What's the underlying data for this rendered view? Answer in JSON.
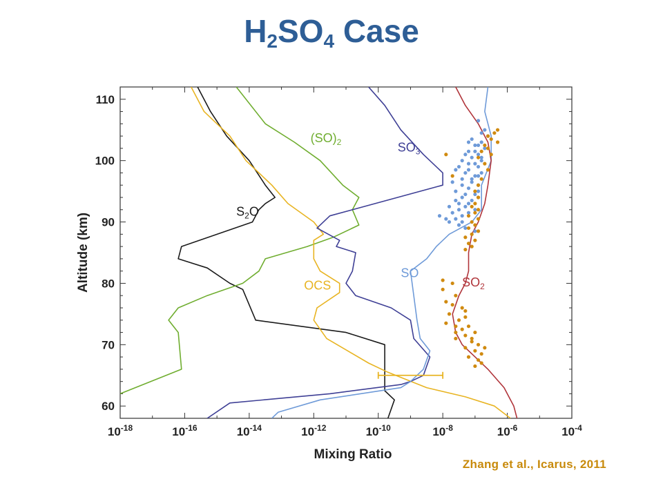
{
  "slide": {
    "title_main": "H",
    "title_sub1": "2",
    "title_mid": "SO",
    "title_sub2": "4",
    "title_tail": " Case",
    "citation": "Zhang et al., Icarus, 2011",
    "title_color": "#2e5e96",
    "citation_color": "#c88a0b"
  },
  "chart_data": {
    "type": "line",
    "xlabel": "Mixing Ratio",
    "ylabel": "Altitude (km)",
    "xscale": "log",
    "xlim_exp": [
      -18,
      -4
    ],
    "ylim": [
      58,
      112
    ],
    "x_ticks": [
      {
        "base": "10",
        "exp": "-18"
      },
      {
        "base": "10",
        "exp": "-16"
      },
      {
        "base": "10",
        "exp": "-14"
      },
      {
        "base": "10",
        "exp": "-12"
      },
      {
        "base": "10",
        "exp": "-10"
      },
      {
        "base": "10",
        "exp": "-8"
      },
      {
        "base": "10",
        "exp": "-6"
      },
      {
        "base": "10",
        "exp": "-4"
      }
    ],
    "y_ticks": [
      "60",
      "70",
      "80",
      "90",
      "100",
      "110"
    ],
    "series": [
      {
        "name": "S2O",
        "label_base": "S",
        "label_sub": "2",
        "label_rest": "O",
        "label_at": {
          "x": -14.4,
          "y": 91.0
        },
        "color": "#1a1a1a",
        "points": [
          [
            -9.7,
            58
          ],
          [
            -9.5,
            61
          ],
          [
            -9.8,
            62.5
          ],
          [
            -9.8,
            70
          ],
          [
            -11.0,
            72
          ],
          [
            -13.8,
            74
          ],
          [
            -14.2,
            79
          ],
          [
            -14.6,
            80
          ],
          [
            -15.3,
            82.5
          ],
          [
            -16.2,
            84
          ],
          [
            -16.1,
            86
          ],
          [
            -13.9,
            90
          ],
          [
            -13.7,
            92
          ],
          [
            -13.5,
            93
          ],
          [
            -13.2,
            94
          ],
          [
            -13.5,
            96
          ],
          [
            -14.0,
            100
          ],
          [
            -14.7,
            104
          ],
          [
            -15.2,
            108
          ],
          [
            -15.6,
            112
          ]
        ]
      },
      {
        "name": "(SO)2",
        "label_base": "(SO)",
        "label_sub": "2",
        "label_rest": "",
        "label_at": {
          "x": -12.1,
          "y": 103.0
        },
        "color": "#6fad2f",
        "points": [
          [
            -18.0,
            62
          ],
          [
            -16.1,
            66
          ],
          [
            -16.2,
            72
          ],
          [
            -16.5,
            74
          ],
          [
            -16.2,
            76
          ],
          [
            -15.3,
            78
          ],
          [
            -14.2,
            80
          ],
          [
            -13.7,
            82
          ],
          [
            -13.5,
            84
          ],
          [
            -12.2,
            86
          ],
          [
            -11.4,
            87.5
          ],
          [
            -10.6,
            89.5
          ],
          [
            -10.8,
            92
          ],
          [
            -10.6,
            94
          ],
          [
            -11.1,
            96
          ],
          [
            -11.8,
            100
          ],
          [
            -12.6,
            103
          ],
          [
            -13.5,
            106
          ],
          [
            -14.4,
            112
          ]
        ]
      },
      {
        "name": "OCS",
        "label_base": "OCS",
        "label_sub": "",
        "label_rest": "",
        "label_at": {
          "x": -12.3,
          "y": 79.0
        },
        "color": "#e8b422",
        "points": [
          [
            -5.9,
            58
          ],
          [
            -6.4,
            60
          ],
          [
            -7.3,
            61.5
          ],
          [
            -8.5,
            63
          ],
          [
            -9.7,
            65.5
          ],
          [
            -10.3,
            67
          ],
          [
            -11.6,
            71
          ],
          [
            -12.0,
            74
          ],
          [
            -11.9,
            76
          ],
          [
            -11.2,
            78.5
          ],
          [
            -11.2,
            80
          ],
          [
            -11.8,
            82
          ],
          [
            -12.0,
            84
          ],
          [
            -12.0,
            87
          ],
          [
            -11.7,
            88
          ],
          [
            -12.0,
            90
          ],
          [
            -12.8,
            93
          ],
          [
            -13.3,
            96
          ],
          [
            -14.1,
            100
          ],
          [
            -14.6,
            104
          ],
          [
            -15.4,
            108
          ],
          [
            -15.8,
            112
          ]
        ]
      },
      {
        "name": "SO3",
        "label_base": "SO",
        "label_sub": "3",
        "label_rest": "",
        "label_at": {
          "x": -9.4,
          "y": 101.5
        },
        "color": "#3e3f95",
        "points": [
          [
            -15.3,
            58
          ],
          [
            -14.6,
            60.5
          ],
          [
            -11.5,
            62
          ],
          [
            -9.3,
            63.5
          ],
          [
            -9.0,
            64
          ],
          [
            -8.6,
            65
          ],
          [
            -8.4,
            68
          ],
          [
            -8.9,
            71
          ],
          [
            -9.0,
            74
          ],
          [
            -9.6,
            76
          ],
          [
            -10.7,
            78
          ],
          [
            -11.0,
            80
          ],
          [
            -10.8,
            82
          ],
          [
            -10.7,
            85
          ],
          [
            -11.3,
            86
          ],
          [
            -11.2,
            87
          ],
          [
            -11.9,
            89
          ],
          [
            -11.5,
            91
          ],
          [
            -8.0,
            96
          ],
          [
            -8.0,
            98
          ],
          [
            -8.6,
            101
          ],
          [
            -9.3,
            105
          ],
          [
            -9.8,
            109
          ],
          [
            -10.3,
            112
          ]
        ]
      },
      {
        "name": "SO",
        "label_base": "SO",
        "label_sub": "",
        "label_rest": "",
        "label_at": {
          "x": -9.3,
          "y": 81.0
        },
        "color": "#6e9ad8",
        "points": [
          [
            -13.3,
            58
          ],
          [
            -13.1,
            59
          ],
          [
            -11.8,
            61
          ],
          [
            -9.3,
            63
          ],
          [
            -9.0,
            64
          ],
          [
            -8.6,
            66
          ],
          [
            -8.4,
            69
          ],
          [
            -8.7,
            71
          ],
          [
            -8.8,
            74
          ],
          [
            -8.9,
            78
          ],
          [
            -9.0,
            82
          ],
          [
            -8.5,
            84
          ],
          [
            -8.2,
            86
          ],
          [
            -7.8,
            88
          ],
          [
            -7.1,
            90
          ],
          [
            -6.8,
            92
          ],
          [
            -6.8,
            96
          ],
          [
            -6.5,
            100
          ],
          [
            -6.5,
            104
          ],
          [
            -6.7,
            108
          ],
          [
            -6.6,
            112
          ]
        ]
      },
      {
        "name": "SO2",
        "label_base": "SO",
        "label_sub": "2",
        "label_rest": "",
        "label_at": {
          "x": -7.4,
          "y": 79.5
        },
        "color": "#b0343a",
        "points": [
          [
            -5.7,
            58
          ],
          [
            -5.8,
            60
          ],
          [
            -6.1,
            63
          ],
          [
            -6.6,
            66
          ],
          [
            -7.0,
            68
          ],
          [
            -7.4,
            70
          ],
          [
            -7.6,
            72
          ],
          [
            -7.7,
            75
          ],
          [
            -7.5,
            78
          ],
          [
            -7.3,
            80
          ],
          [
            -7.2,
            82
          ],
          [
            -7.2,
            85
          ],
          [
            -7.1,
            88
          ],
          [
            -6.9,
            90
          ],
          [
            -6.7,
            93
          ],
          [
            -6.6,
            96
          ],
          [
            -6.5,
            100
          ],
          [
            -6.6,
            103
          ],
          [
            -6.9,
            106
          ],
          [
            -7.3,
            109
          ],
          [
            -7.6,
            112
          ]
        ]
      }
    ],
    "error_bar": {
      "x_min": -10.0,
      "x_max": -8.0,
      "y": 65,
      "color": "#e8b422"
    },
    "observations": [
      {
        "name": "SO observations",
        "color": "#6e9ad8",
        "points": [
          [
            -7.8,
            90
          ],
          [
            -7.6,
            90.5
          ],
          [
            -7.4,
            91
          ],
          [
            -7.2,
            91.5
          ],
          [
            -7.0,
            92
          ],
          [
            -7.3,
            92.5
          ],
          [
            -7.5,
            93
          ],
          [
            -7.1,
            93.5
          ],
          [
            -6.9,
            94
          ],
          [
            -7.3,
            94.5
          ],
          [
            -7.6,
            95
          ],
          [
            -7.2,
            95.5
          ],
          [
            -6.9,
            96
          ],
          [
            -7.1,
            96.5
          ],
          [
            -7.4,
            97
          ],
          [
            -7.0,
            97.5
          ],
          [
            -6.8,
            98
          ],
          [
            -7.2,
            98.5
          ],
          [
            -7.5,
            99
          ],
          [
            -7.0,
            99.5
          ],
          [
            -6.8,
            100
          ],
          [
            -7.1,
            100.5
          ],
          [
            -6.9,
            101
          ],
          [
            -7.2,
            101.5
          ],
          [
            -6.7,
            102
          ],
          [
            -7.0,
            102.5
          ],
          [
            -6.8,
            103
          ],
          [
            -7.1,
            103.5
          ],
          [
            -6.6,
            104
          ],
          [
            -6.8,
            104.5
          ],
          [
            -6.7,
            105
          ],
          [
            -7.5,
            89.5
          ],
          [
            -7.3,
            89
          ],
          [
            -7.0,
            88.5
          ],
          [
            -7.4,
            90
          ],
          [
            -7.9,
            90.5
          ],
          [
            -8.1,
            91
          ],
          [
            -7.7,
            91.5
          ],
          [
            -7.5,
            92
          ],
          [
            -7.8,
            92.5
          ],
          [
            -7.2,
            93
          ],
          [
            -7.6,
            93.5
          ],
          [
            -7.4,
            94
          ],
          [
            -7.0,
            94.5
          ],
          [
            -6.9,
            95
          ],
          [
            -7.4,
            96
          ],
          [
            -7.7,
            96.5
          ],
          [
            -7.1,
            97
          ],
          [
            -6.9,
            97.5
          ],
          [
            -7.3,
            98
          ],
          [
            -7.6,
            98.5
          ],
          [
            -6.9,
            99
          ],
          [
            -7.2,
            99.5
          ],
          [
            -7.4,
            100
          ],
          [
            -6.8,
            100.5
          ],
          [
            -7.3,
            101
          ],
          [
            -7.0,
            101.5
          ],
          [
            -6.9,
            102.5
          ],
          [
            -7.2,
            103
          ],
          [
            -6.9,
            106.5
          ]
        ]
      },
      {
        "name": "SO2 observations",
        "color": "#d08a10",
        "points": [
          [
            -6.3,
            105
          ],
          [
            -6.4,
            104.5
          ],
          [
            -6.6,
            104
          ],
          [
            -6.5,
            103.5
          ],
          [
            -6.3,
            103
          ],
          [
            -6.7,
            102.5
          ],
          [
            -6.6,
            102
          ],
          [
            -6.8,
            101.5
          ],
          [
            -6.5,
            101
          ],
          [
            -6.9,
            100.5
          ],
          [
            -6.7,
            99.5
          ],
          [
            -6.6,
            98.5
          ],
          [
            -7.9,
            101
          ],
          [
            -7.7,
            97.5
          ],
          [
            -6.8,
            97
          ],
          [
            -6.9,
            96
          ],
          [
            -7.0,
            95
          ],
          [
            -6.9,
            94
          ],
          [
            -7.0,
            93
          ],
          [
            -7.1,
            92.5
          ],
          [
            -6.9,
            92
          ],
          [
            -7.0,
            91.5
          ],
          [
            -7.2,
            91
          ],
          [
            -6.9,
            90.5
          ],
          [
            -7.1,
            90
          ],
          [
            -7.0,
            89.5
          ],
          [
            -7.2,
            89
          ],
          [
            -6.9,
            88.5
          ],
          [
            -7.1,
            88
          ],
          [
            -7.3,
            87.5
          ],
          [
            -7.0,
            87
          ],
          [
            -7.2,
            86.5
          ],
          [
            -7.1,
            86
          ],
          [
            -7.3,
            85.5
          ],
          [
            -8.0,
            80.5
          ],
          [
            -7.7,
            80
          ],
          [
            -8.0,
            79
          ],
          [
            -7.6,
            78
          ],
          [
            -7.9,
            77
          ],
          [
            -7.7,
            76.5
          ],
          [
            -7.4,
            76
          ],
          [
            -7.8,
            75
          ],
          [
            -7.3,
            74.5
          ],
          [
            -7.5,
            74
          ],
          [
            -7.9,
            73.5
          ],
          [
            -7.2,
            73
          ],
          [
            -7.6,
            73
          ],
          [
            -7.4,
            72.5
          ],
          [
            -7.0,
            72
          ],
          [
            -7.3,
            71.5
          ],
          [
            -7.6,
            71
          ],
          [
            -7.1,
            70.5
          ],
          [
            -6.9,
            70
          ],
          [
            -7.3,
            69.5
          ],
          [
            -7.0,
            69
          ],
          [
            -6.8,
            68.5
          ],
          [
            -7.2,
            68
          ],
          [
            -6.9,
            67.5
          ],
          [
            -6.8,
            67
          ],
          [
            -7.0,
            66.5
          ],
          [
            -7.3,
            75.5
          ],
          [
            -7.6,
            72
          ],
          [
            -7.1,
            71
          ],
          [
            -6.7,
            69.5
          ]
        ]
      }
    ]
  }
}
